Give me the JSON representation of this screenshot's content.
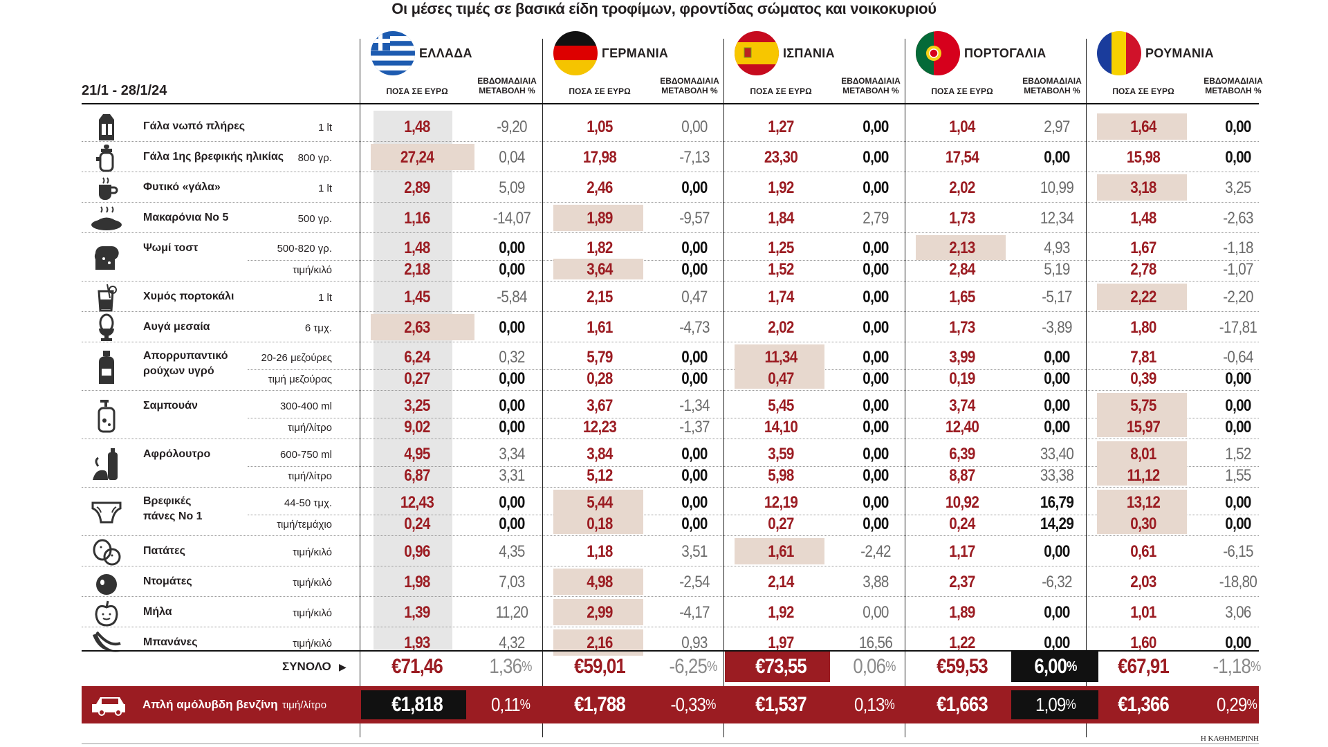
{
  "title": "Οι μέσες τιμές σε βασικά είδη τροφίμων, φροντίδας σώματος και νοικοκυριού",
  "date_range": "21/1 - 28/1/24",
  "column_headers": {
    "price": "ΠΟΣΑ ΣΕ ΕΥΡΩ",
    "change_line1": "ΕΒΔΟΜΑΔΙΑΙΑ",
    "change_line2": "ΜΕΤΑΒΟΛΗ %"
  },
  "countries": [
    {
      "name": "ΕΛΛΑΔΑ",
      "flag": "greece-flag"
    },
    {
      "name": "ΓΕΡΜΑΝΙΑ",
      "flag": "germany-flag"
    },
    {
      "name": "ΙΣΠΑΝΙΑ",
      "flag": "spain-flag"
    },
    {
      "name": "ΠΟΡΤΟΓΑΛΙΑ",
      "flag": "portugal-flag"
    },
    {
      "name": "ΡΟΥΜΑΝΙΑ",
      "flag": "romania-flag"
    }
  ],
  "products": [
    {
      "name": "Γάλα νωπό πλήρες",
      "icon": "milk-carton-icon",
      "rows": [
        {
          "unit": "1 lt",
          "prices": [
            "1,48",
            "1,05",
            "1,27",
            "1,04",
            "1,64"
          ],
          "changes": [
            "-9,20",
            "0,00",
            "0,00",
            "2,97",
            "0,00"
          ],
          "hl": [
            0,
            0,
            0,
            0,
            1
          ],
          "chg_style": [
            "g",
            "g",
            "b",
            "g",
            "b"
          ]
        }
      ]
    },
    {
      "name": "Γάλα 1ης βρεφικής ηλικίας",
      "icon": "baby-bottle-icon",
      "rows": [
        {
          "unit": "800 γρ.",
          "prices": [
            "27,24",
            "17,98",
            "23,30",
            "17,54",
            "15,98"
          ],
          "changes": [
            "0,04",
            "-7,13",
            "0,00",
            "0,00",
            "0,00"
          ],
          "hl": [
            1,
            0,
            0,
            0,
            0
          ],
          "chg_style": [
            "g",
            "g",
            "b",
            "b",
            "b"
          ]
        }
      ]
    },
    {
      "name": "Φυτικό «γάλα»",
      "icon": "cup-icon",
      "rows": [
        {
          "unit": "1 lt",
          "prices": [
            "2,89",
            "2,46",
            "1,92",
            "2,02",
            "3,18"
          ],
          "changes": [
            "5,09",
            "0,00",
            "0,00",
            "10,99",
            "3,25"
          ],
          "hl": [
            0,
            0,
            0,
            0,
            1
          ],
          "chg_style": [
            "g",
            "b",
            "b",
            "g",
            "g"
          ]
        }
      ]
    },
    {
      "name": "Μακαρόνια Νο 5",
      "icon": "pasta-plate-icon",
      "rows": [
        {
          "unit": "500 γρ.",
          "prices": [
            "1,16",
            "1,89",
            "1,84",
            "1,73",
            "1,48"
          ],
          "changes": [
            "-14,07",
            "-9,57",
            "2,79",
            "12,34",
            "-2,63"
          ],
          "hl": [
            0,
            1,
            0,
            0,
            0
          ],
          "chg_style": [
            "g",
            "g",
            "g",
            "g",
            "g"
          ]
        }
      ]
    },
    {
      "name": "Ψωμί τοστ",
      "icon": "bread-icon",
      "rows": [
        {
          "unit": "500-820 γρ.",
          "prices": [
            "1,48",
            "1,82",
            "1,25",
            "2,13",
            "1,67"
          ],
          "changes": [
            "0,00",
            "0,00",
            "0,00",
            "4,93",
            "-1,18"
          ],
          "hl": [
            0,
            0,
            0,
            1,
            0
          ],
          "chg_style": [
            "b",
            "b",
            "b",
            "g",
            "g"
          ]
        },
        {
          "unit": "τιμή/κιλό",
          "prices": [
            "2,18",
            "3,64",
            "1,52",
            "2,84",
            "2,78"
          ],
          "changes": [
            "0,00",
            "0,00",
            "0,00",
            "5,19",
            "-1,07"
          ],
          "hl": [
            0,
            1,
            0,
            0,
            0
          ],
          "chg_style": [
            "b",
            "b",
            "b",
            "g",
            "g"
          ]
        }
      ]
    },
    {
      "name": "Χυμός πορτοκάλι",
      "icon": "juice-glass-icon",
      "rows": [
        {
          "unit": "1 lt",
          "prices": [
            "1,45",
            "2,15",
            "1,74",
            "1,65",
            "2,22"
          ],
          "changes": [
            "-5,84",
            "0,47",
            "0,00",
            "-5,17",
            "-2,20"
          ],
          "hl": [
            0,
            0,
            0,
            0,
            1
          ],
          "chg_style": [
            "g",
            "g",
            "b",
            "g",
            "g"
          ]
        }
      ]
    },
    {
      "name": "Αυγά μεσαία",
      "icon": "egg-cup-icon",
      "rows": [
        {
          "unit": "6 τμχ.",
          "prices": [
            "2,63",
            "1,61",
            "2,02",
            "1,73",
            "1,80"
          ],
          "changes": [
            "0,00",
            "-4,73",
            "0,00",
            "-3,89",
            "-17,81"
          ],
          "hl": [
            1,
            0,
            0,
            0,
            0
          ],
          "chg_style": [
            "b",
            "g",
            "b",
            "g",
            "g"
          ]
        }
      ]
    },
    {
      "name": "Απορρυπαντικό ρούχων υγρό",
      "name_line1": "Απορρυπαντικό",
      "name_line2": "ρούχων υγρό",
      "icon": "detergent-bottle-icon",
      "rows": [
        {
          "unit": "20-26 μεζούρες",
          "prices": [
            "6,24",
            "5,79",
            "11,34",
            "3,99",
            "7,81"
          ],
          "changes": [
            "0,32",
            "0,00",
            "0,00",
            "0,00",
            "-0,64"
          ],
          "hl": [
            0,
            0,
            1,
            0,
            0
          ],
          "chg_style": [
            "g",
            "b",
            "b",
            "b",
            "g"
          ]
        },
        {
          "unit": "τιμή μεζούρας",
          "prices": [
            "0,27",
            "0,28",
            "0,47",
            "0,19",
            "0,39"
          ],
          "changes": [
            "0,00",
            "0,00",
            "0,00",
            "0,00",
            "0,00"
          ],
          "hl": [
            0,
            0,
            1,
            0,
            0
          ],
          "chg_style": [
            "b",
            "b",
            "b",
            "b",
            "b"
          ]
        }
      ]
    },
    {
      "name": "Σαμπουάν",
      "icon": "shampoo-bottle-icon",
      "rows": [
        {
          "unit": "300-400 ml",
          "prices": [
            "3,25",
            "3,67",
            "5,45",
            "3,74",
            "5,75"
          ],
          "changes": [
            "0,00",
            "-1,34",
            "0,00",
            "0,00",
            "0,00"
          ],
          "hl": [
            0,
            0,
            0,
            0,
            1
          ],
          "chg_style": [
            "b",
            "g",
            "b",
            "b",
            "b"
          ]
        },
        {
          "unit": "τιμή/λίτρο",
          "prices": [
            "9,02",
            "12,23",
            "14,10",
            "12,40",
            "15,97"
          ],
          "changes": [
            "0,00",
            "-1,37",
            "0,00",
            "0,00",
            "0,00"
          ],
          "hl": [
            0,
            0,
            0,
            0,
            1
          ],
          "chg_style": [
            "b",
            "g",
            "b",
            "b",
            "b"
          ]
        }
      ]
    },
    {
      "name": "Αφρόλουτρο",
      "icon": "shower-gel-icon",
      "rows": [
        {
          "unit": "600-750 ml",
          "prices": [
            "4,95",
            "3,84",
            "3,59",
            "6,39",
            "8,01"
          ],
          "changes": [
            "3,34",
            "0,00",
            "0,00",
            "33,40",
            "1,52"
          ],
          "hl": [
            0,
            0,
            0,
            0,
            1
          ],
          "chg_style": [
            "g",
            "b",
            "b",
            "g",
            "g"
          ]
        },
        {
          "unit": "τιμή/λίτρο",
          "prices": [
            "6,87",
            "5,12",
            "5,98",
            "8,87",
            "11,12"
          ],
          "changes": [
            "3,31",
            "0,00",
            "0,00",
            "33,38",
            "1,55"
          ],
          "hl": [
            0,
            0,
            0,
            0,
            1
          ],
          "chg_style": [
            "g",
            "b",
            "b",
            "g",
            "g"
          ]
        }
      ]
    },
    {
      "name": "Βρεφικές πάνες Νο 1",
      "name_line1": "Βρεφικές",
      "name_line2": "πάνες Νο 1",
      "icon": "diaper-icon",
      "rows": [
        {
          "unit": "44-50 τμχ.",
          "prices": [
            "12,43",
            "5,44",
            "12,19",
            "10,92",
            "13,12"
          ],
          "changes": [
            "0,00",
            "0,00",
            "0,00",
            "16,79",
            "0,00"
          ],
          "hl": [
            0,
            1,
            0,
            0,
            1
          ],
          "chg_style": [
            "b",
            "b",
            "b",
            "b",
            "b"
          ]
        },
        {
          "unit": "τιμή/τεμάχιο",
          "prices": [
            "0,24",
            "0,18",
            "0,27",
            "0,24",
            "0,30"
          ],
          "changes": [
            "0,00",
            "0,00",
            "0,00",
            "14,29",
            "0,00"
          ],
          "hl": [
            0,
            1,
            0,
            0,
            1
          ],
          "chg_style": [
            "b",
            "b",
            "b",
            "b",
            "b"
          ]
        }
      ]
    },
    {
      "name": "Πατάτες",
      "icon": "potato-icon",
      "rows": [
        {
          "unit": "τιμή/κιλό",
          "prices": [
            "0,96",
            "1,18",
            "1,61",
            "1,17",
            "0,61"
          ],
          "changes": [
            "4,35",
            "3,51",
            "-2,42",
            "0,00",
            "-6,15"
          ],
          "hl": [
            0,
            0,
            1,
            0,
            0
          ],
          "chg_style": [
            "g",
            "g",
            "g",
            "b",
            "g"
          ]
        }
      ]
    },
    {
      "name": "Ντομάτες",
      "icon": "tomato-icon",
      "rows": [
        {
          "unit": "τιμή/κιλό",
          "prices": [
            "1,98",
            "4,98",
            "2,14",
            "2,37",
            "2,03"
          ],
          "changes": [
            "7,03",
            "-2,54",
            "3,88",
            "-6,32",
            "-18,80"
          ],
          "hl": [
            0,
            1,
            0,
            0,
            0
          ],
          "chg_style": [
            "g",
            "g",
            "g",
            "g",
            "g"
          ]
        }
      ]
    },
    {
      "name": "Μήλα",
      "icon": "apple-icon",
      "rows": [
        {
          "unit": "τιμή/κιλό",
          "prices": [
            "1,39",
            "2,99",
            "1,92",
            "1,89",
            "1,01"
          ],
          "changes": [
            "11,20",
            "-4,17",
            "0,00",
            "0,00",
            "3,06"
          ],
          "hl": [
            0,
            1,
            0,
            0,
            0
          ],
          "chg_style": [
            "g",
            "g",
            "g",
            "b",
            "g"
          ]
        }
      ]
    },
    {
      "name": "Μπανάνες",
      "icon": "banana-icon",
      "rows": [
        {
          "unit": "τιμή/κιλό",
          "prices": [
            "1,93",
            "2,16",
            "1,97",
            "1,22",
            "1,60"
          ],
          "changes": [
            "4,32",
            "0,93",
            "16,56",
            "0,00",
            "0,00"
          ],
          "hl": [
            0,
            1,
            0,
            0,
            0
          ],
          "chg_style": [
            "g",
            "g",
            "g",
            "b",
            "b"
          ]
        }
      ]
    }
  ],
  "total": {
    "label": "ΣΥΝΟΛΟ",
    "prices": [
      "€71,46",
      "€59,01",
      "€73,55",
      "€59,53",
      "€67,91"
    ],
    "changes": [
      "1,36",
      "-6,25",
      "0,06",
      "6,00",
      "-1,18"
    ],
    "highlight_price": [
      0,
      0,
      1,
      0,
      0
    ],
    "highlight_change": [
      0,
      0,
      0,
      1,
      0
    ]
  },
  "fuel": {
    "name": "Απλή αμόλυβδη βενζίνη",
    "unit": "τιμή/λίτρο",
    "prices": [
      "€1,818",
      "€1,788",
      "€1,537",
      "€1,663",
      "€1,366"
    ],
    "changes": [
      "0,11",
      "-0,33",
      "0,13",
      "1,09",
      "0,29"
    ],
    "highlight_price": [
      1,
      0,
      0,
      0,
      0
    ],
    "highlight_change": [
      0,
      0,
      0,
      1,
      0
    ]
  },
  "percent_sign": "%",
  "source": "Η ΚΑΘΗΜΕΡΙΝΗ",
  "colors": {
    "accent": "#9b1c22",
    "highlight": "#e7d8ce",
    "greece_col": "#e6e6e6",
    "black": "#111111"
  },
  "chart_data": {
    "type": "table",
    "title": "Οι μέσες τιμές σε βασικά είδη τροφίμων, φροντίδας σώματος και νοικοκυριού",
    "period": "21/1 - 28/1/24",
    "columns": [
      "ΕΛΛΑΔΑ",
      "ΓΕΡΜΑΝΙΑ",
      "ΙΣΠΑΝΙΑ",
      "ΠΟΡΤΟΓΑΛΙΑ",
      "ΡΟΥΜΑΝΙΑ"
    ],
    "price_unit": "ΠΟΣΑ ΣΕ ΕΥΡΩ",
    "change_unit": "ΕΒΔΟΜΑΔΙΑΙΑ ΜΕΤΑΒΟΛΗ %"
  }
}
